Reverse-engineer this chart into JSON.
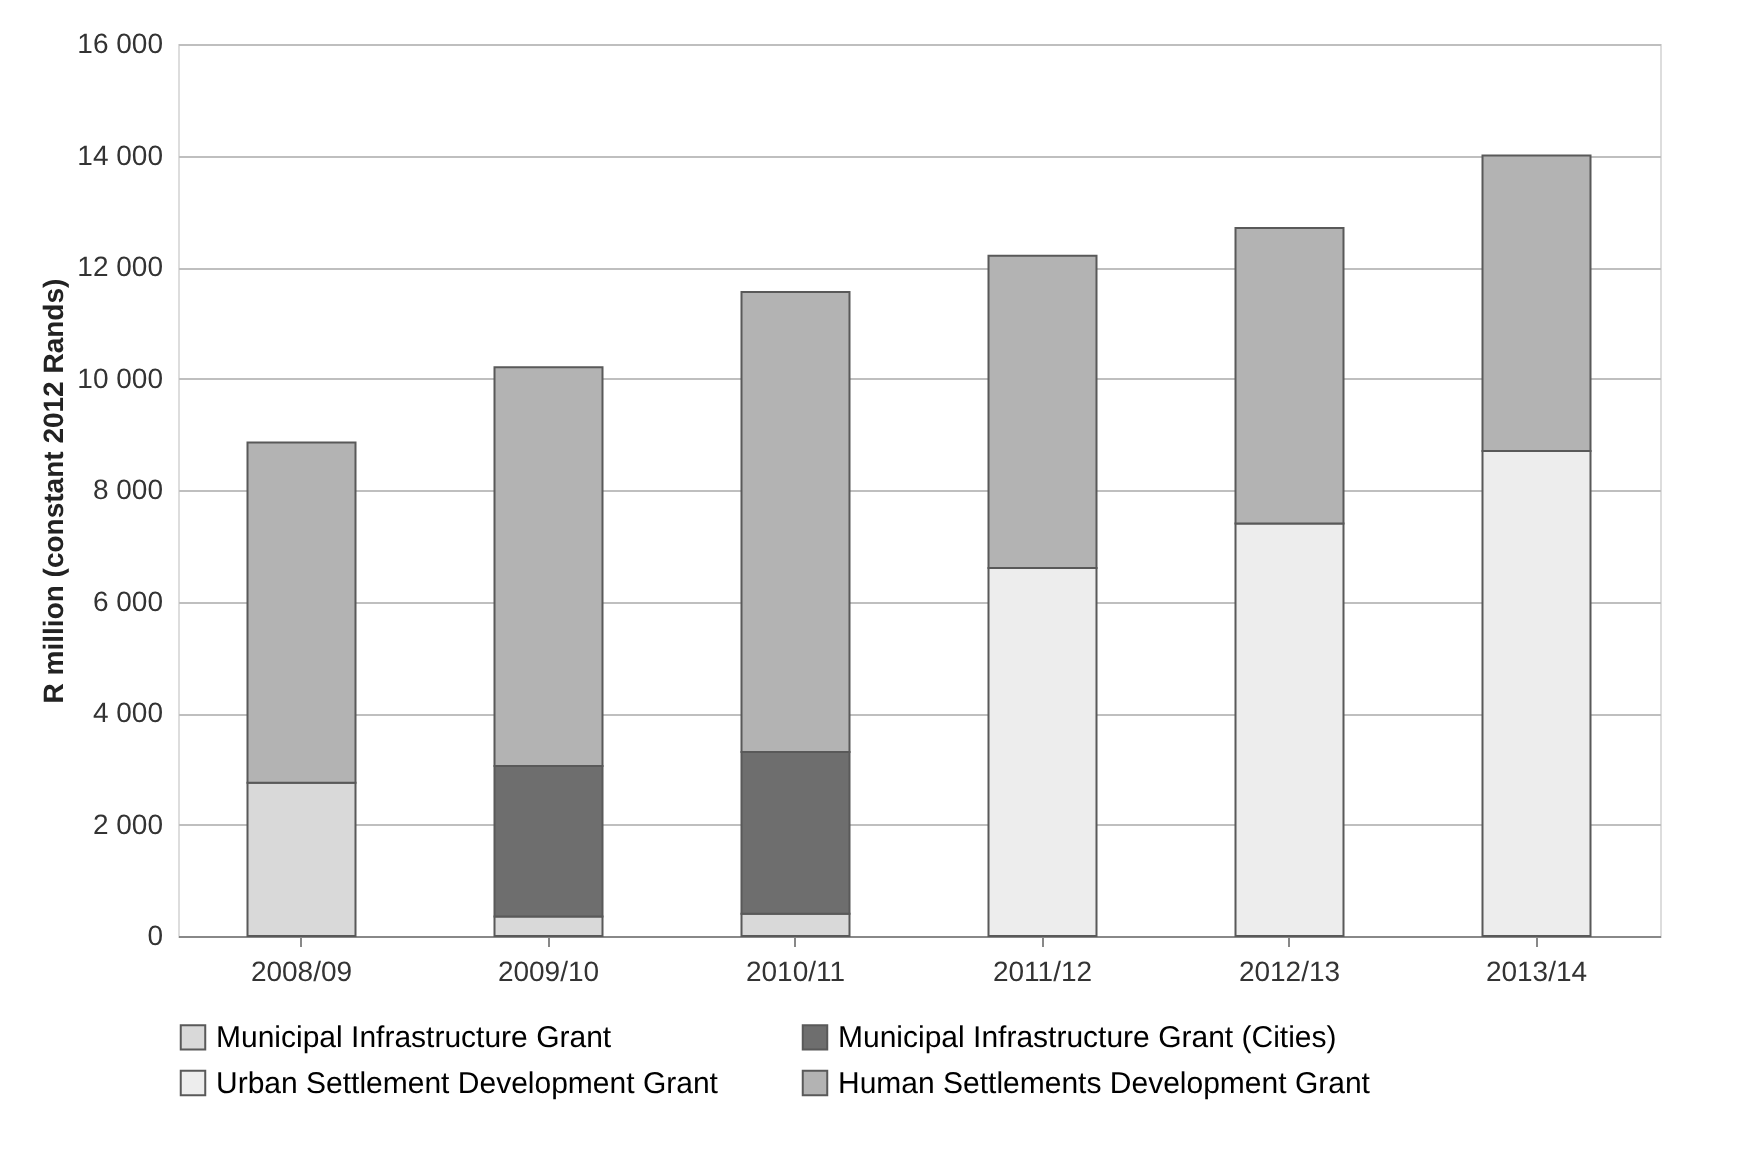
{
  "chart_data": {
    "type": "bar",
    "stacked": true,
    "ylabel": "R million (constant 2012 Rands)",
    "categories": [
      "2008/09",
      "2009/10",
      "2010/11",
      "2011/12",
      "2012/13",
      "2013/14"
    ],
    "series": [
      {
        "name": "Municipal Infrastructure Grant",
        "color": "#d9d9d9",
        "values": [
          2750,
          350,
          400,
          null,
          null,
          null
        ]
      },
      {
        "name": "Municipal Infrastructure Grant (Cities)",
        "color": "#6e6e6e",
        "values": [
          null,
          2700,
          2900,
          null,
          null,
          null
        ]
      },
      {
        "name": "Urban Settlement Development Grant",
        "color": "#ededed",
        "values": [
          null,
          null,
          null,
          6600,
          7400,
          8700
        ]
      },
      {
        "name": "Human Settlements Development Grant",
        "color": "#b3b3b3",
        "values": [
          6100,
          7150,
          8250,
          5600,
          5300,
          5300
        ]
      }
    ],
    "ylim": [
      0,
      16000
    ],
    "yticks": [
      {
        "value": 0,
        "label": "0"
      },
      {
        "value": 2000,
        "label": "2 000"
      },
      {
        "value": 4000,
        "label": "4 000"
      },
      {
        "value": 6000,
        "label": "6 000"
      },
      {
        "value": 8000,
        "label": "8 000"
      },
      {
        "value": 10000,
        "label": "10 000"
      },
      {
        "value": 12000,
        "label": "12 000"
      },
      {
        "value": 14000,
        "label": "14 000"
      },
      {
        "value": 16000,
        "label": "16 000"
      }
    ],
    "grid": "y",
    "legend": "bottom"
  }
}
